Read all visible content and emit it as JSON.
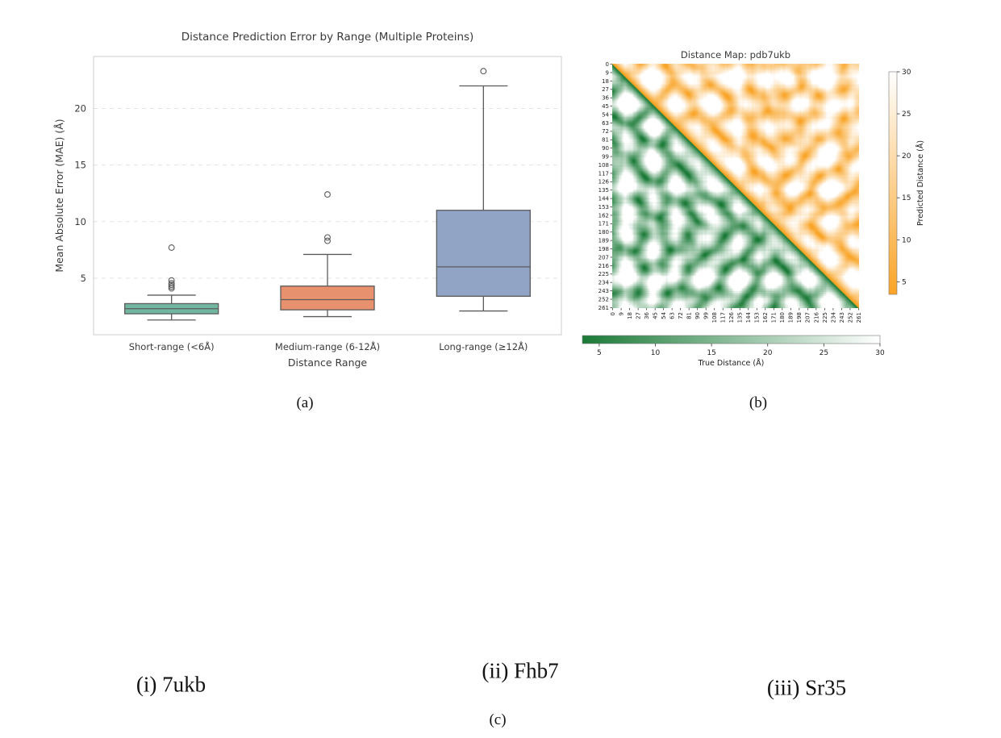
{
  "figure": {
    "background": "#ffffff",
    "captions": {
      "a": "(a)",
      "b": "(b)",
      "c": "(c)"
    },
    "subfigures": [
      {
        "label": "(i) 7ukb"
      },
      {
        "label": "(ii) Fhb7"
      },
      {
        "label": "(iii) Sr35"
      }
    ]
  },
  "chart_data": [
    {
      "type": "boxplot",
      "title": "Distance Prediction Error by Range (Multiple Proteins)",
      "xlabel": "Distance Range",
      "ylabel": "Mean Absolute Error (MAE) (Å)",
      "ylim": [
        0,
        24.6
      ],
      "yticks": [
        5,
        10,
        15,
        20
      ],
      "grid": "horizontal-dashed",
      "categories": [
        "Short-range (<6Å)",
        "Medium-range (6-12Å)",
        "Long-range (≥12Å)"
      ],
      "boxes": [
        {
          "category": "Short-range (<6Å)",
          "whisker_low": 1.3,
          "q1": 1.85,
          "median": 2.3,
          "q3": 2.75,
          "whisker_high": 3.5,
          "outliers": [
            4.1,
            4.25,
            4.4,
            4.55,
            4.8,
            7.7
          ],
          "color": "#72b6a1"
        },
        {
          "category": "Medium-range (6-12Å)",
          "whisker_low": 1.6,
          "q1": 2.2,
          "median": 3.1,
          "q3": 4.3,
          "whisker_high": 7.1,
          "outliers": [
            8.3,
            8.6,
            12.4
          ],
          "color": "#e8916f"
        },
        {
          "category": "Long-range (≥12Å)",
          "whisker_low": 2.1,
          "q1": 3.4,
          "median": 6.0,
          "q3": 11.0,
          "whisker_high": 22.0,
          "outliers": [
            23.3
          ],
          "color": "#92a4c6"
        }
      ],
      "box_edge_color": "#5b5b5b"
    },
    {
      "type": "heatmap",
      "title": "Distance Map: pdb7ukb",
      "n_residues": 262,
      "tick_step": 9,
      "ticks": [
        0,
        9,
        18,
        27,
        36,
        45,
        54,
        63,
        72,
        81,
        90,
        99,
        108,
        117,
        126,
        135,
        144,
        153,
        162,
        171,
        180,
        189,
        198,
        207,
        216,
        225,
        234,
        243,
        252,
        261
      ],
      "lower_triangle": {
        "label": "True Distance (Å)",
        "color_low": "#1a7a37",
        "color_high": "#ffffff"
      },
      "upper_triangle": {
        "label": "Predicted Distance (Å)",
        "color_low": "#f9a426",
        "color_high": "#ffffff"
      },
      "colorbar_ticks": [
        5,
        10,
        15,
        20,
        25,
        30
      ],
      "value_range": [
        3.5,
        30
      ]
    }
  ],
  "proteins": {
    "ribbon_color_tan": "#d9ba8e",
    "ribbon_color_tan_dark": "#b08a58",
    "ribbon_color_cyan": "#00ced8",
    "ribbon_color_cyan_dark": "#009fae",
    "items": [
      {
        "name": "7ukb",
        "caption": "(i) 7ukb"
      },
      {
        "name": "Fhb7",
        "caption": "(ii) Fhb7"
      },
      {
        "name": "Sr35",
        "caption": "(iii) Sr35"
      }
    ]
  }
}
